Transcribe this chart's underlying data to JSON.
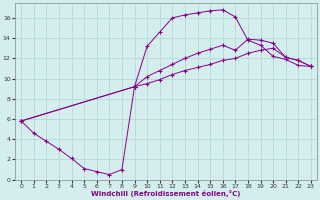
{
  "xlabel": "Windchill (Refroidissement éolien,°C)",
  "background_color": "#d4eeee",
  "grid_color": "#b0d4d4",
  "line_color": "#880088",
  "xlim": [
    -0.5,
    23.5
  ],
  "ylim": [
    0,
    17.5
  ],
  "xticks": [
    0,
    1,
    2,
    3,
    4,
    5,
    6,
    7,
    8,
    9,
    10,
    11,
    12,
    13,
    14,
    15,
    16,
    17,
    18,
    19,
    20,
    21,
    22,
    23
  ],
  "yticks": [
    0,
    2,
    4,
    6,
    8,
    10,
    12,
    14,
    16
  ],
  "curve1_x": [
    0,
    1,
    2,
    3,
    4,
    5,
    6,
    7,
    8,
    9,
    10,
    11,
    12,
    13,
    14,
    15,
    16,
    17,
    18,
    19,
    20,
    21,
    22,
    23
  ],
  "curve1_y": [
    5.8,
    4.6,
    3.8,
    3.0,
    2.1,
    1.1,
    0.8,
    0.5,
    1.0,
    9.2,
    13.2,
    14.6,
    16.0,
    16.3,
    16.5,
    16.7,
    16.8,
    16.1,
    13.8,
    13.3,
    12.2,
    11.9,
    11.3,
    11.2
  ],
  "curve2_x": [
    0,
    9,
    10,
    11,
    12,
    13,
    14,
    15,
    16,
    17,
    18,
    19,
    20,
    21,
    22,
    23
  ],
  "curve2_y": [
    5.8,
    9.2,
    10.2,
    10.8,
    11.4,
    12.0,
    12.5,
    12.9,
    13.3,
    12.8,
    13.9,
    13.8,
    13.5,
    12.1,
    11.8,
    11.2
  ],
  "curve3_x": [
    0,
    9,
    10,
    11,
    12,
    13,
    14,
    15,
    16,
    17,
    18,
    19,
    20,
    21,
    22,
    23
  ],
  "curve3_y": [
    5.8,
    9.2,
    9.5,
    9.9,
    10.4,
    10.8,
    11.1,
    11.4,
    11.8,
    12.0,
    12.5,
    12.8,
    13.0,
    12.1,
    11.8,
    11.2
  ]
}
